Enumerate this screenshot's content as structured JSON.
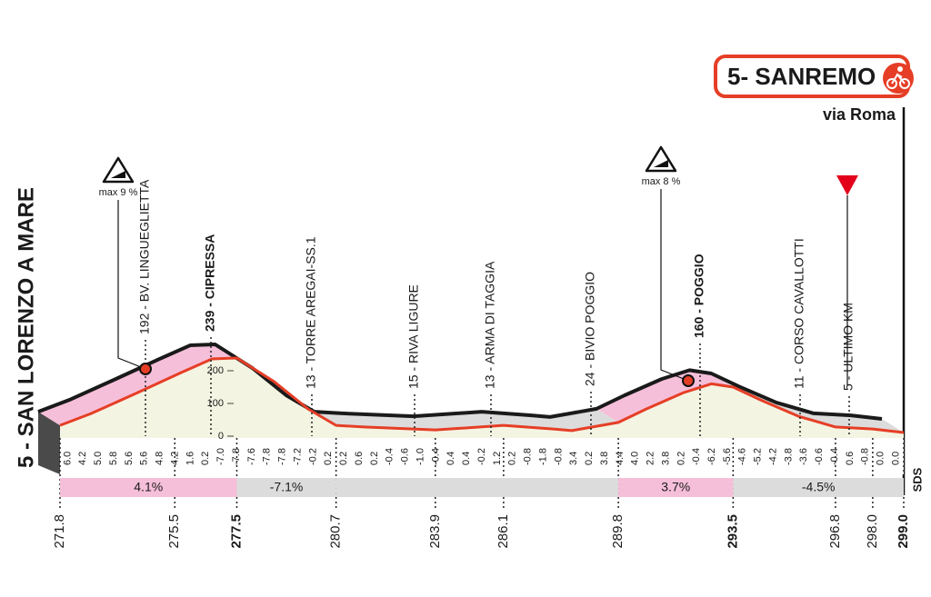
{
  "chart_data": {
    "type": "area",
    "start_label": "5 - SAN LORENZO A MARE",
    "finish": {
      "label": "5- SANREMO",
      "sublabel": "via Roma"
    },
    "x": [
      271.8,
      272.8,
      274.3,
      275.7,
      276.7,
      277.5,
      278.7,
      279.8,
      280.7,
      281.6,
      283.9,
      286.1,
      287.7,
      288.3,
      289.8,
      290.7,
      291.9,
      292.8,
      293.5,
      294.4,
      295.6,
      296.8,
      298.0,
      299.0
    ],
    "values": [
      33,
      69,
      133,
      194,
      236,
      239,
      167,
      83,
      33,
      28,
      19,
      33,
      22,
      17,
      42,
      83,
      133,
      160,
      150,
      110,
      61,
      28,
      22,
      11
    ],
    "xlim": [
      271.8,
      299.0
    ],
    "ylim": [
      0,
      300
    ],
    "xticks": [
      271.8,
      275.5,
      277.5,
      280.7,
      283.9,
      286.1,
      289.8,
      293.5,
      296.8,
      {
        "value": 298,
        "label": "298.0"
      },
      {
        "value": 299,
        "label": "299.0"
      }
    ],
    "yticks": [
      0,
      100,
      200
    ],
    "line_color": "#e63e26",
    "top_color": "#1a1a1a",
    "area_color": "#f4f4e2",
    "gradients": [
      "6.0",
      "4.2",
      "5.0",
      "5.8",
      "5.6",
      "5.6",
      "4.8",
      "4.2",
      "1.6",
      "0.2",
      "-7.0",
      "-7.8",
      "-7.6",
      "-7.8",
      "-7.8",
      "-7.2",
      "-0.2",
      "0.2",
      "0.2",
      "0.6",
      "0.2",
      "-0.4",
      "-0.6",
      "-1.0",
      "-0.4",
      "0.4",
      "0.4",
      "-0.2",
      "1.2",
      "0.2",
      "-0.8",
      "-1.8",
      "-0.8",
      "3.4",
      "0.2",
      "3.8",
      "4.4",
      "4.0",
      "2.2",
      "3.8",
      "0.2",
      "-0.4",
      "-6.2",
      "-5.6",
      "-4.6",
      "-5.2",
      "-4.2",
      "-3.8",
      "-3.6",
      "-0.6",
      "-0.4",
      "0.6",
      "-0.8",
      "0.0",
      "0.0"
    ],
    "segments": [
      {
        "from": 271.8,
        "to": 277.5,
        "label": "4.1%",
        "color": "#f6bfd9"
      },
      {
        "from": 277.5,
        "to": 280.7,
        "label": "-7.1%",
        "color": "#dcdcdc"
      },
      {
        "from": 280.7,
        "to": 289.8,
        "label": null,
        "color": "#dcdcdc"
      },
      {
        "from": 289.8,
        "to": 293.5,
        "label": "3.7%",
        "color": "#f6bfd9"
      },
      {
        "from": 293.5,
        "to": 299.0,
        "label": "-4.5%",
        "color": "#dcdcdc"
      }
    ],
    "waypoints": [
      "192 - BV. LINGUEGLIETTA",
      "239 - CIPRESSA",
      "13 - TORRE AREGAI-SS.1",
      "15 - RIVA LIGURE",
      "13 - ARMA DI TAGGIA",
      "24 - BIVIO POGGIO",
      "160 - POGGIO",
      "11 - CORSO CAVALLOTTI",
      "5 - ULTIMO KM"
    ],
    "climbs": [
      "max 9 %",
      "max 8 %"
    ],
    "logo": "SDS"
  }
}
